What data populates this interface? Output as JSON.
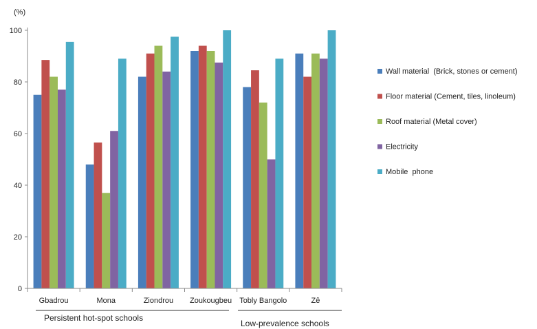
{
  "chart_data": {
    "type": "bar",
    "ylabel": "(%)",
    "ylim": [
      0,
      100
    ],
    "yticks": [
      0,
      20,
      40,
      60,
      80,
      100
    ],
    "grid": false,
    "legend_position": "right",
    "categories": [
      "Gbadrou",
      "Mona",
      "Ziondrou",
      "Zoukougbeu",
      "Tobly Bangolo",
      "Zê"
    ],
    "groups": [
      {
        "label": "Persistent hot-spot schools",
        "categories": [
          "Gbadrou",
          "Mona",
          "Ziondrou",
          "Zoukougbeu"
        ]
      },
      {
        "label": "Low-prevalence schools",
        "categories": [
          "Tobly Bangolo",
          "Zê"
        ]
      }
    ],
    "series": [
      {
        "name": "Wall material  (Brick, stones or cement)",
        "color": "#4a7ebb",
        "values": [
          75,
          48,
          82,
          92,
          78,
          91
        ]
      },
      {
        "name": "Floor material (Cement, tiles, linoleum)",
        "color": "#c0504d",
        "values": [
          88.5,
          56.5,
          91,
          94,
          84.5,
          82
        ]
      },
      {
        "name": "Roof material (Metal cover)",
        "color": "#9bbb59",
        "values": [
          82,
          37,
          94,
          92,
          72,
          91
        ]
      },
      {
        "name": "Electricity",
        "color": "#8064a2",
        "values": [
          77,
          61,
          84,
          87.5,
          50,
          89
        ]
      },
      {
        "name": "Mobile  phone",
        "color": "#4bacc6",
        "values": [
          95.5,
          89,
          97.5,
          100,
          89,
          100
        ]
      }
    ]
  }
}
